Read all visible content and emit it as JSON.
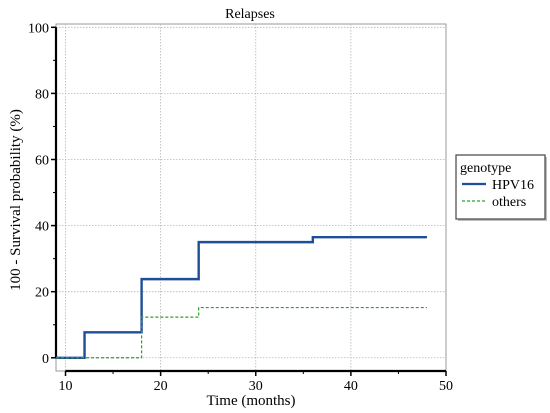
{
  "chart_data": {
    "type": "line",
    "title": "Relapses",
    "xlabel": "Time (months)",
    "ylabel": "100 - Survival probability (%)",
    "xlim": [
      9,
      50
    ],
    "ylim": [
      -4,
      101
    ],
    "xticks": [
      10,
      20,
      30,
      40,
      50
    ],
    "yticks": [
      0,
      20,
      40,
      60,
      80,
      100
    ],
    "grid": true,
    "step": true,
    "legend": {
      "title": "genotype",
      "position": "right"
    },
    "series": [
      {
        "name": "HPV16",
        "color": "#1f4e99",
        "style": "solid",
        "x": [
          9,
          12,
          18,
          24,
          36,
          48
        ],
        "y": [
          0,
          7.7,
          23.8,
          35.0,
          36.5,
          36.5
        ]
      },
      {
        "name": "others",
        "color": "#2ca02c",
        "style": "dashed",
        "x": [
          9,
          18,
          24,
          48
        ],
        "y": [
          0,
          12.3,
          15.2,
          15.2
        ]
      }
    ]
  }
}
